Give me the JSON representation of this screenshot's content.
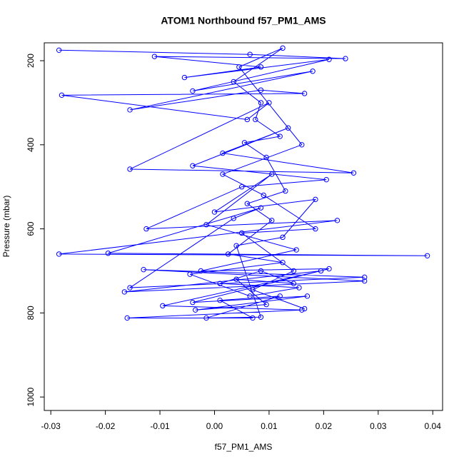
{
  "chart_data": {
    "type": "line",
    "title": "ATOM1 Northbound f57_PM1_AMS",
    "x_label": "f57_PM1_AMS",
    "y_label": "Pressure (mbar)",
    "color": "#0000ff",
    "markers": true,
    "x": [
      -0.0285,
      0.0065,
      0.024,
      -0.011,
      0.0085,
      -0.0055,
      0.021,
      -0.004,
      0.018,
      -0.0155,
      0.0085,
      0.0165,
      -0.028,
      0.006,
      0.01,
      -0.0155,
      0.0255,
      0.0015,
      0.0135,
      -0.004,
      0.0205,
      0.005,
      -0.0125,
      0.0225,
      -0.0285,
      0.039,
      -0.0195,
      0.0085,
      0.0035,
      -0.0155,
      0.0275,
      -0.013,
      0.0275,
      -0.0165,
      0.0195,
      -0.0095,
      0.016,
      -0.016,
      0.007,
      0.001,
      0.012,
      -0.0015,
      0.0085,
      0.004,
      0.0125,
      0.0185,
      0.0,
      0.0105,
      -0.0015,
      0.015,
      -0.0025,
      0.021,
      -0.004,
      0.017,
      -0.0035,
      0.0095,
      0.004,
      0.0145,
      0.0085,
      0.001,
      0.0155,
      0.0065,
      -0.0045,
      0.0125,
      0.0025,
      0.0105,
      0.006,
      0.013,
      0.0095,
      0.0055,
      0.012,
      0.0075,
      0.0085,
      0.0035,
      0.0125,
      0.0045,
      0.016,
      0.0015,
      0.009,
      0.0185,
      0.005,
      0.0145,
      0.007,
      0.0165
    ],
    "values": [
      175,
      185,
      195,
      190,
      215,
      240,
      197,
      272,
      225,
      317,
      270,
      278,
      282,
      340,
      300,
      458,
      467,
      420,
      360,
      450,
      483,
      500,
      600,
      580,
      660,
      664,
      658,
      550,
      575,
      740,
      715,
      697,
      724,
      750,
      700,
      783,
      793,
      812,
      812,
      770,
      760,
      812,
      810,
      640,
      620,
      530,
      560,
      470,
      590,
      650,
      700,
      695,
      775,
      760,
      793,
      780,
      720,
      730,
      700,
      730,
      740,
      760,
      708,
      680,
      660,
      580,
      540,
      510,
      430,
      395,
      380,
      340,
      300,
      250,
      170,
      215,
      400,
      470,
      520,
      600,
      610,
      700,
      745,
      790
    ],
    "xlim": [
      -0.0312,
      0.0418
    ],
    "xticks": [
      -0.03,
      -0.02,
      -0.01,
      {
        "value": 0,
        "label": "0.00"
      },
      0.01,
      0.02,
      0.03,
      0.04
    ],
    "ylim": [
      1032,
      157.5
    ],
    "yticks": [
      200,
      400,
      600,
      800,
      1000
    ]
  }
}
